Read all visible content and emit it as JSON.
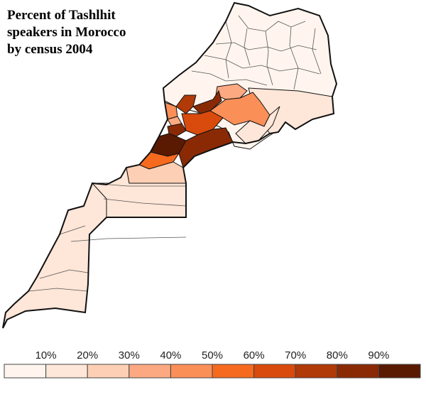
{
  "title_lines": [
    "Percent of Tashlhit",
    "speakers in Morocco",
    "by census 2004"
  ],
  "legend": {
    "ticks": [
      "10%",
      "20%",
      "30%",
      "40%",
      "50%",
      "60%",
      "70%",
      "80%",
      "90%"
    ],
    "colors": [
      "#fff5ee",
      "#fee6d8",
      "#fdd0b5",
      "#fca982",
      "#fb8f58",
      "#f56a1e",
      "#d94b0c",
      "#b03a08",
      "#8a2a05",
      "#5a1a02"
    ]
  },
  "map": {
    "stroke": "#111111",
    "inner_stroke": "#555555"
  }
}
